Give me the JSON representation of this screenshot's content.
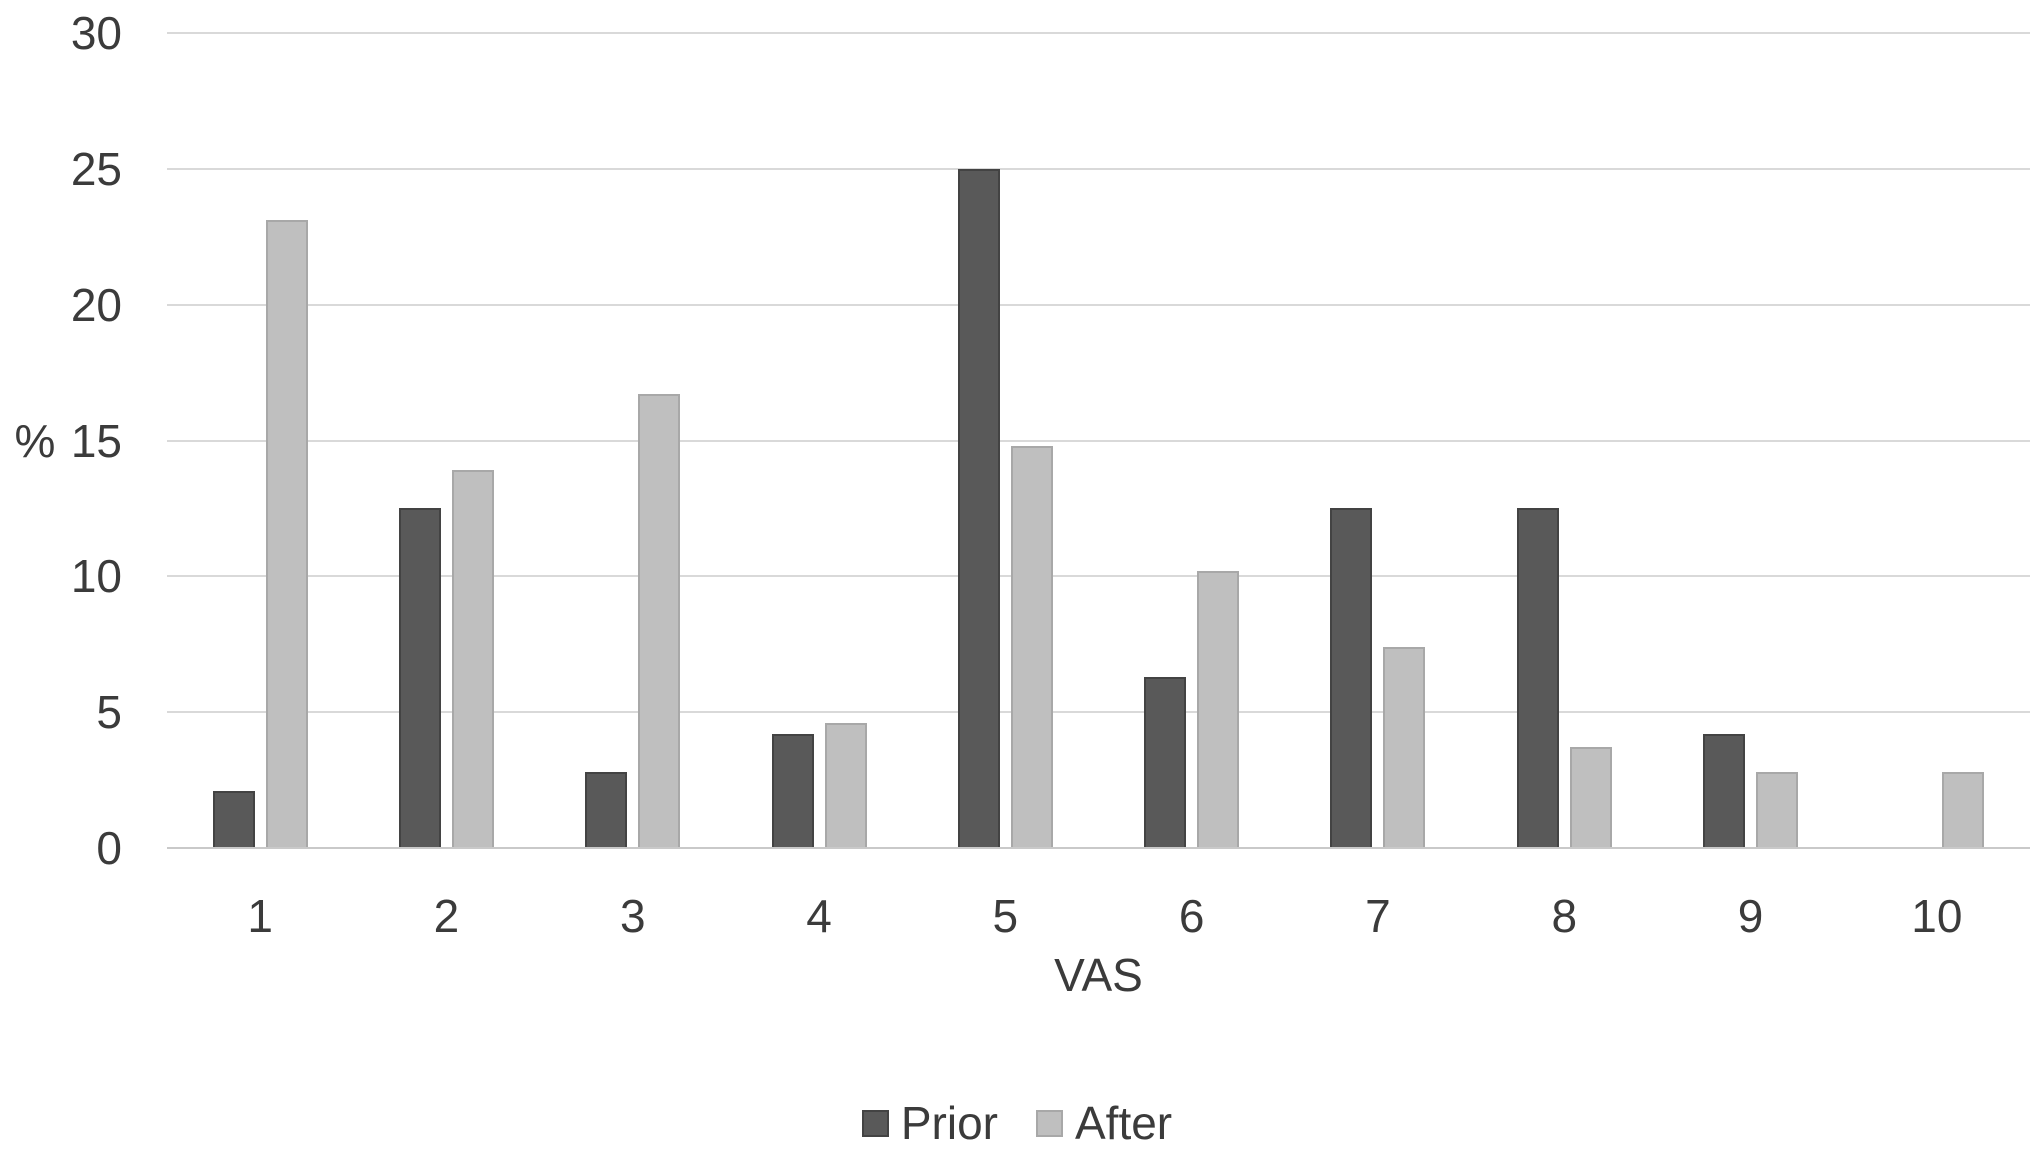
{
  "chart_data": {
    "type": "bar",
    "title": "",
    "categories": [
      "1",
      "2",
      "3",
      "4",
      "5",
      "6",
      "7",
      "8",
      "9",
      "10"
    ],
    "series": [
      {
        "name": "Prior",
        "color": "#595959",
        "border_color": "#434343",
        "values": [
          2.1,
          12.5,
          2.8,
          4.2,
          25,
          6.3,
          12.5,
          12.5,
          4.2,
          0
        ]
      },
      {
        "name": "After",
        "color": "#bfbfbf",
        "border_color": "#a8a8a8",
        "values": [
          23.1,
          13.9,
          16.7,
          4.6,
          14.8,
          10.2,
          7.4,
          3.7,
          2.8,
          2.8
        ]
      }
    ],
    "xlabel": "VAS",
    "ylabel": "%",
    "ylim": [
      0,
      30
    ],
    "yticks": [
      0,
      5,
      10,
      15,
      20,
      25,
      30
    ],
    "grid": true,
    "legend_position": "bottom",
    "gridline_color": "#d9d9d9",
    "axis_line_color": "#c9c9c9",
    "text_color": "#3b3b3b",
    "background": "#ffffff"
  }
}
